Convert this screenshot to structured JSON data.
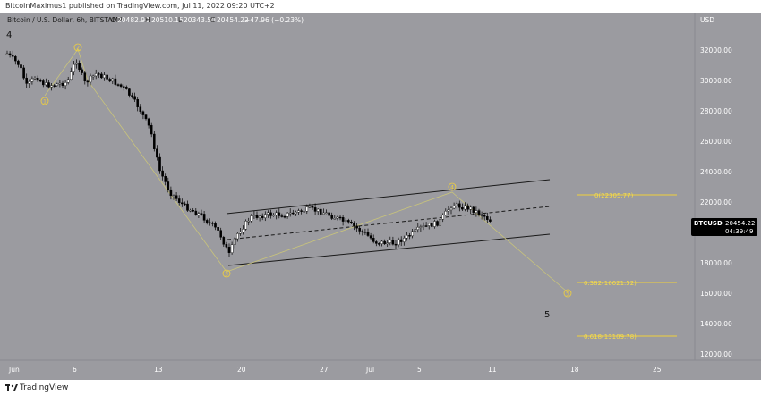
{
  "header": {
    "published": "BitcoinMaximus1 published on TradingView.com, Jul 11, 2022 09:20 UTC+2"
  },
  "legend": {
    "symbol": "Bitcoin / U.S. Dollar, 6h, BITSTAMP",
    "o_label": "O",
    "o_value": "20482.90",
    "h_label": "H",
    "h_value": "20510.15",
    "l_label": "L",
    "l_value": "20343.50",
    "c_label": "C",
    "c_value": "20454.22",
    "change": "−47.96 (−0.23%)"
  },
  "price_axis": {
    "currency": "USD",
    "ticks": [
      "32000.00",
      "30000.00",
      "28000.00",
      "26000.00",
      "24000.00",
      "22000.00",
      "18000.00",
      "16000.00",
      "14000.00",
      "12000.00"
    ],
    "price_tag_symbol": "BTCUSD",
    "price_tag_value": "20454.22",
    "price_tag_countdown": "04:39:49"
  },
  "time_axis": {
    "ticks": [
      "Jun",
      "6",
      "13",
      "20",
      "27",
      "Jul",
      "5",
      "11",
      "18",
      "25"
    ]
  },
  "waves": {
    "w1": "1",
    "w2": "2",
    "w3": "3",
    "w4": "4",
    "w5": "5",
    "big4": "4",
    "big5": "5"
  },
  "fibs": [
    {
      "label": "0(22305.77)",
      "price": 22305.77
    },
    {
      "label": "0.382(16621.52)",
      "price": 16621.52
    },
    {
      "label": "0.618(13109.78)",
      "price": 13109.78
    }
  ],
  "colors": {
    "background": "#9b9ba0",
    "candle_up": "#ffffff",
    "candle_down": "#000000",
    "wave_line": "#c9c47a",
    "fib_line": "#f2d13a",
    "fib_text": "#f7dd4a"
  },
  "footer": {
    "brand": "TradingView",
    "logo_icon": "tradingview-logo-icon"
  }
}
